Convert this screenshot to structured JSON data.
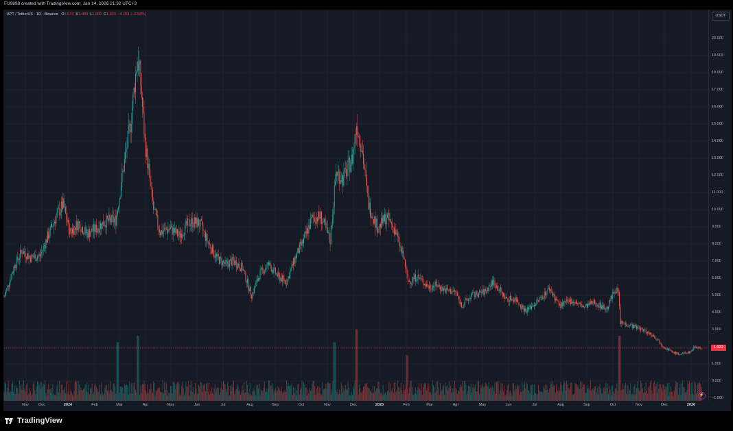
{
  "header": {
    "watermark_text": "FU9898 created with TradingView.com, Jan 14, 2026 21:32 UTC+3"
  },
  "legend": {
    "symbol": "APT / TetherUS · 1D · Binance",
    "open_label": "O",
    "open": "1.974",
    "high_label": "H",
    "high": "1.989",
    "low_label": "L",
    "low": "1.905",
    "close_label": "C",
    "close": "1.923",
    "change": "−0.051 (−2.58%)"
  },
  "price_scale": {
    "currency": "USDT",
    "last_price": "1.922"
  },
  "footer": {
    "brand": "TradingView"
  },
  "colors": {
    "up": "#26a69a",
    "down": "#ef5350",
    "background": "#161a25",
    "grid": "#232632",
    "last_price": "#f23645"
  },
  "chart_data": {
    "type": "candlestick",
    "title": "APT / TetherUS · 1D · Binance",
    "currency": "USDT",
    "ylim": [
      -1,
      20.5
    ],
    "yticks": [
      -1,
      0,
      1,
      2,
      3,
      4,
      5,
      6,
      7,
      8,
      9,
      10,
      11,
      12,
      13,
      14,
      15,
      16,
      17,
      18,
      19,
      20
    ],
    "ytick_labels": [
      "−1.000",
      "0.000",
      "1.000",
      "2.000",
      "3.000",
      "4.000",
      "5.000",
      "6.000",
      "7.000",
      "8.000",
      "9.000",
      "10.000",
      "11.000",
      "12.000",
      "13.000",
      "14.000",
      "15.000",
      "16.000",
      "17.000",
      "18.000",
      "19.000",
      "20.000"
    ],
    "xticks": [
      "Nov",
      "Dec",
      "2024",
      "Feb",
      "Mar",
      "Apr",
      "May",
      "Jun",
      "Jul",
      "Aug",
      "Sep",
      "Oct",
      "Nov",
      "Dec",
      "2025",
      "Feb",
      "Mar",
      "Apr",
      "May",
      "Jun",
      "Jul",
      "Aug",
      "Sep",
      "Oct",
      "Nov",
      "Dec",
      "2026"
    ],
    "x_range": [
      "2023-10-20",
      "2026-01-14"
    ],
    "grid": true,
    "last_price": 1.922,
    "series": [
      {
        "name": "APT / TetherUS",
        "price_path": [
          [
            "2023-10-20",
            4.9
          ],
          [
            "2023-11-01",
            6.7
          ],
          [
            "2023-11-10",
            7.6
          ],
          [
            "2023-11-20",
            7.2
          ],
          [
            "2023-12-01",
            7.3
          ],
          [
            "2023-12-10",
            8.4
          ],
          [
            "2023-12-20",
            9.6
          ],
          [
            "2023-12-28",
            10.3
          ],
          [
            "2024-01-05",
            8.7
          ],
          [
            "2024-01-15",
            9.2
          ],
          [
            "2024-01-25",
            8.6
          ],
          [
            "2024-02-05",
            8.9
          ],
          [
            "2024-02-15",
            9.3
          ],
          [
            "2024-02-28",
            9.4
          ],
          [
            "2024-03-08",
            12.5
          ],
          [
            "2024-03-16",
            15.0
          ],
          [
            "2024-03-24",
            18.8
          ],
          [
            "2024-03-27",
            18.0
          ],
          [
            "2024-04-02",
            14.0
          ],
          [
            "2024-04-12",
            10.0
          ],
          [
            "2024-04-20",
            8.7
          ],
          [
            "2024-05-01",
            8.9
          ],
          [
            "2024-05-12",
            8.5
          ],
          [
            "2024-05-25",
            9.3
          ],
          [
            "2024-06-05",
            9.2
          ],
          [
            "2024-06-15",
            8.1
          ],
          [
            "2024-06-25",
            7.2
          ],
          [
            "2024-07-05",
            6.8
          ],
          [
            "2024-07-15",
            7.0
          ],
          [
            "2024-07-25",
            6.6
          ],
          [
            "2024-08-05",
            5.0
          ],
          [
            "2024-08-15",
            6.3
          ],
          [
            "2024-08-25",
            6.8
          ],
          [
            "2024-09-05",
            6.1
          ],
          [
            "2024-09-15",
            5.8
          ],
          [
            "2024-09-25",
            7.2
          ],
          [
            "2024-10-05",
            8.2
          ],
          [
            "2024-10-15",
            9.5
          ],
          [
            "2024-10-25",
            9.6
          ],
          [
            "2024-11-05",
            8.2
          ],
          [
            "2024-11-12",
            12.2
          ],
          [
            "2024-11-20",
            11.8
          ],
          [
            "2024-12-01",
            13.0
          ],
          [
            "2024-12-06",
            15.0
          ],
          [
            "2024-12-12",
            13.7
          ],
          [
            "2024-12-20",
            10.3
          ],
          [
            "2024-12-31",
            8.9
          ],
          [
            "2025-01-10",
            9.6
          ],
          [
            "2025-01-20",
            8.8
          ],
          [
            "2025-01-31",
            7.0
          ],
          [
            "2025-02-04",
            5.8
          ],
          [
            "2025-02-15",
            6.1
          ],
          [
            "2025-02-28",
            5.5
          ],
          [
            "2025-03-10",
            5.6
          ],
          [
            "2025-03-20",
            5.3
          ],
          [
            "2025-04-01",
            5.2
          ],
          [
            "2025-04-08",
            4.4
          ],
          [
            "2025-04-20",
            5.0
          ],
          [
            "2025-05-05",
            5.2
          ],
          [
            "2025-05-15",
            5.8
          ],
          [
            "2025-05-30",
            4.8
          ],
          [
            "2025-06-10",
            4.8
          ],
          [
            "2025-06-22",
            4.1
          ],
          [
            "2025-07-05",
            4.6
          ],
          [
            "2025-07-20",
            5.4
          ],
          [
            "2025-08-01",
            4.4
          ],
          [
            "2025-08-15",
            4.7
          ],
          [
            "2025-08-30",
            4.3
          ],
          [
            "2025-09-10",
            4.6
          ],
          [
            "2025-09-25",
            4.2
          ],
          [
            "2025-10-05",
            5.4
          ],
          [
            "2025-10-09",
            5.1
          ],
          [
            "2025-10-11",
            3.4
          ],
          [
            "2025-10-20",
            3.3
          ],
          [
            "2025-11-01",
            3.1
          ],
          [
            "2025-11-10",
            2.9
          ],
          [
            "2025-11-20",
            2.6
          ],
          [
            "2025-12-01",
            2.0
          ],
          [
            "2025-12-10",
            1.7
          ],
          [
            "2025-12-20",
            1.55
          ],
          [
            "2026-01-01",
            1.7
          ],
          [
            "2026-01-06",
            2.0
          ],
          [
            "2026-01-14",
            1.92
          ]
        ],
        "volume_spikes": [
          [
            "2024-03-01",
            0.9
          ],
          [
            "2024-03-25",
            1.0
          ],
          [
            "2024-11-10",
            0.9
          ],
          [
            "2024-12-06",
            1.1
          ],
          [
            "2025-02-03",
            0.7
          ],
          [
            "2025-10-10",
            1.0
          ]
        ]
      }
    ]
  }
}
